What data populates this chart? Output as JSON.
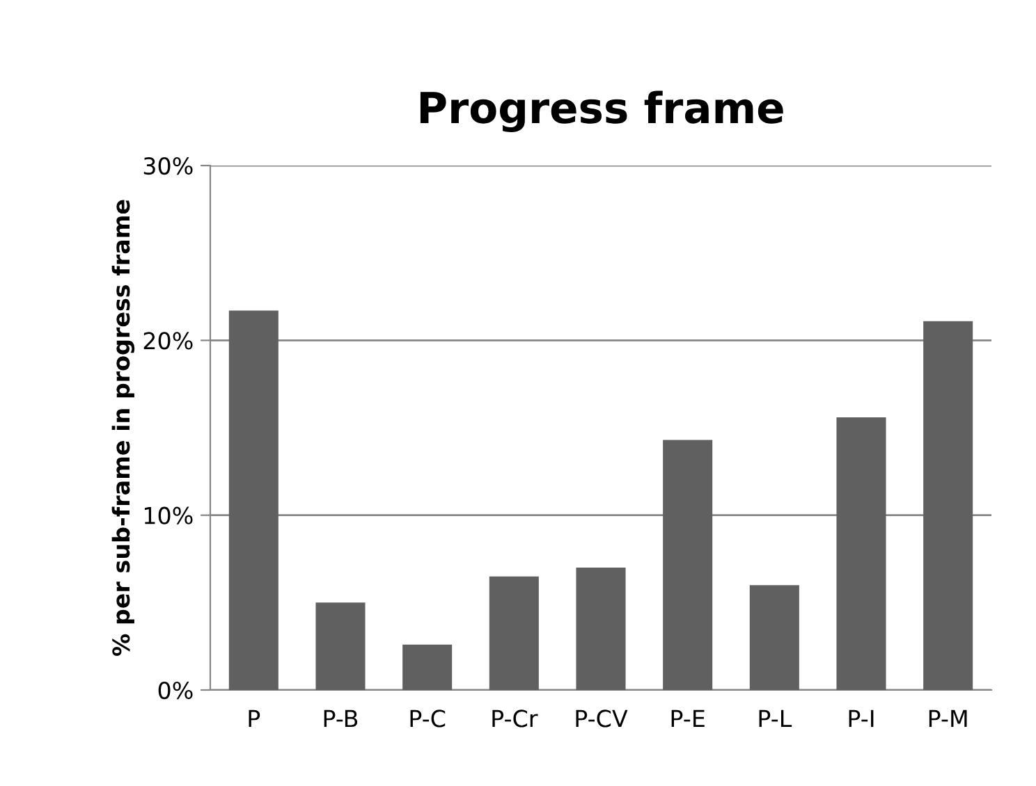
{
  "chart_data": {
    "type": "bar",
    "title": "Progress frame",
    "ylabel": "% per sub-frame in progress frame",
    "categories": [
      "P",
      "P-B",
      "P-C",
      "P-Cr",
      "P-CV",
      "P-E",
      "P-L",
      "P-I",
      "P-M"
    ],
    "values": [
      21.7,
      5.0,
      2.6,
      6.5,
      7.0,
      14.3,
      6.0,
      15.6,
      21.1
    ],
    "color": "#606060",
    "ylim": [
      0,
      30
    ],
    "yticks": [
      {
        "value": 0,
        "label": "0%"
      },
      {
        "value": 10,
        "label": "10%"
      },
      {
        "value": 20,
        "label": "20%"
      },
      {
        "value": 30,
        "label": "30%"
      }
    ],
    "grid": "y"
  }
}
